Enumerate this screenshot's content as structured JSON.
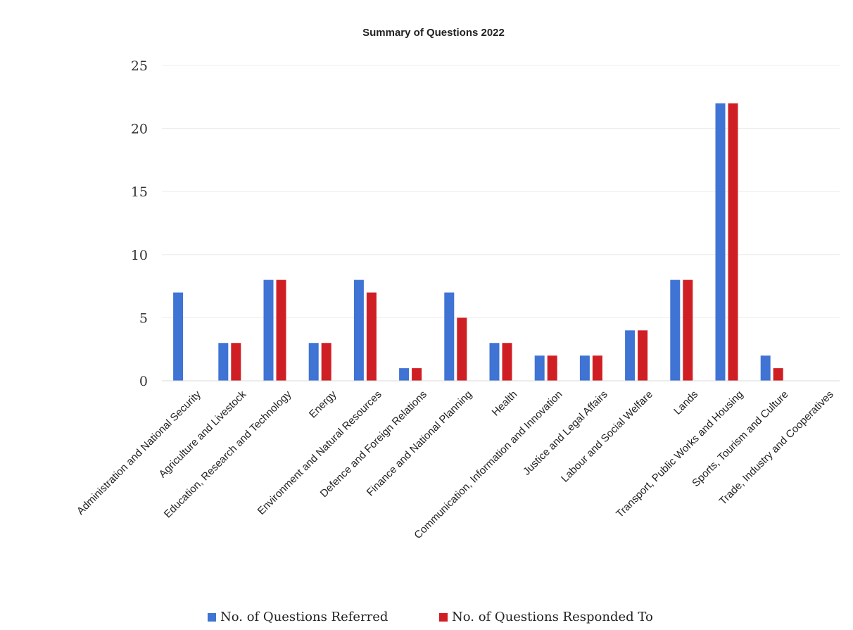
{
  "chart_data": {
    "type": "bar",
    "title": "Summary of Questions 2022",
    "xlabel": "",
    "ylabel": "",
    "ylim": [
      0,
      25
    ],
    "yticks": [
      0,
      5,
      10,
      15,
      20,
      25
    ],
    "grid": true,
    "legend_position": "bottom",
    "categories": [
      "Administration and National Security",
      "Agriculture and Livestock",
      "Education, Research and Technology",
      "Energy",
      "Environment and Natural Resources",
      "Defence and Foreign Relations",
      "Finance and National Planning",
      "Health",
      "Communication, Information and Innovation",
      "Justice and Legal Affairs",
      "Labour and Social Welfare",
      "Lands",
      "Transport, Public Works and Housing",
      "Sports, Tourism and Culture",
      "Trade, Industry and Cooperatives"
    ],
    "series": [
      {
        "name": "No. of Questions Referred",
        "color": "#3f73d4",
        "values": [
          7,
          3,
          8,
          3,
          8,
          1,
          7,
          3,
          2,
          2,
          4,
          8,
          22,
          2,
          0
        ]
      },
      {
        "name": "No. of Questions Responded To",
        "color": "#cf1f24",
        "values": [
          0,
          3,
          8,
          3,
          7,
          1,
          5,
          3,
          2,
          2,
          4,
          8,
          22,
          1,
          0
        ]
      }
    ]
  }
}
